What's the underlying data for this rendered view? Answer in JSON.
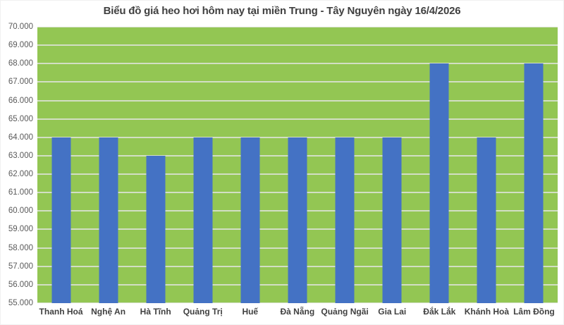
{
  "chart_data": {
    "type": "bar",
    "title": "Biểu đồ giá heo hơi hôm nay tại miền Trung - Tây Nguyên ngày 16/4/2026",
    "categories": [
      "Thanh Hoá",
      "Nghệ An",
      "Hà Tĩnh",
      "Quảng Trị",
      "Huế",
      "Đà Nẵng",
      "Quảng Ngãi",
      "Gia Lai",
      "Đắk Lắk",
      "Khánh Hoà",
      "Lâm Đồng"
    ],
    "values": [
      64000,
      64000,
      63000,
      64000,
      64000,
      64000,
      64000,
      64000,
      68000,
      64000,
      68000
    ],
    "xlabel": "",
    "ylabel": "",
    "ylim": [
      55000,
      70000
    ],
    "ytick_step": 1000,
    "ytick_labels": [
      "55.000",
      "56.000",
      "57.000",
      "58.000",
      "59.000",
      "60.000",
      "61.000",
      "62.000",
      "63.000",
      "64.000",
      "65.000",
      "66.000",
      "67.000",
      "68.000",
      "69.000",
      "70.000"
    ],
    "grid": true,
    "legend": "none"
  },
  "colors": {
    "chart_background": "#FFFFFF",
    "chart_border": "#F0F0F0",
    "plot_background": "#93C653",
    "bar_fill": "#4472C4",
    "gridline": "#D2DEC4",
    "title_text": "#404040",
    "x_label_text": "#404040",
    "y_label_text": "#595959"
  }
}
